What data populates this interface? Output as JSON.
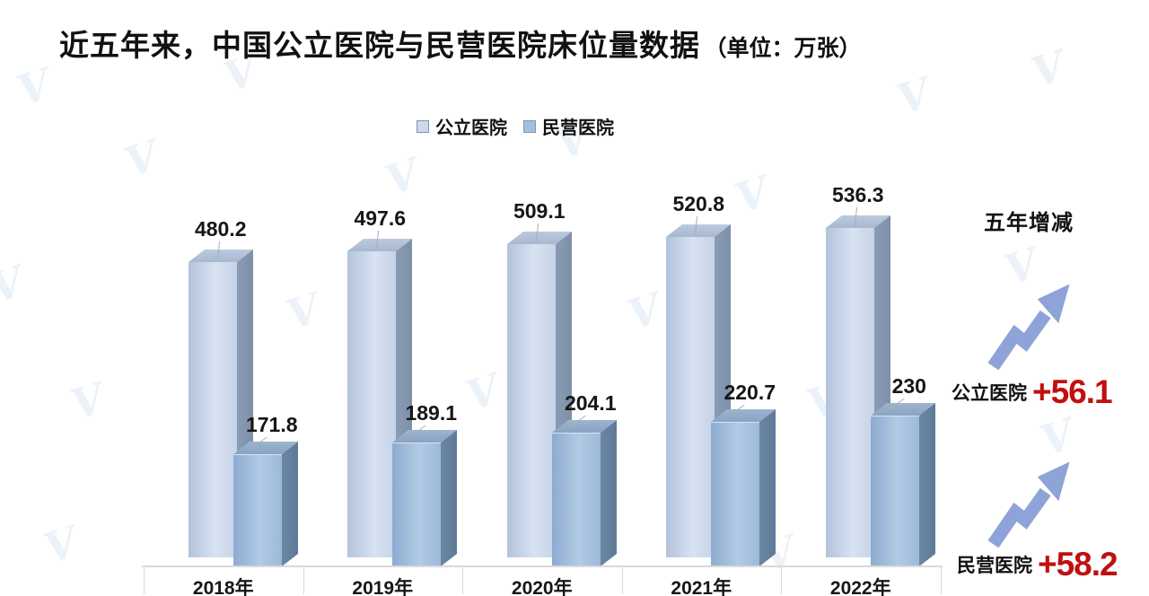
{
  "title": {
    "main": "近五年来，中国公立医院与民营医院床位量数据",
    "unit": "（单位：万张）"
  },
  "watermark": {
    "letter": "V"
  },
  "chart_data": {
    "type": "bar",
    "style": "3d-column",
    "title": "近五年来，中国公立医院与民营医院床位量数据",
    "unit": "万张",
    "categories": [
      "2018年",
      "2019年",
      "2020年",
      "2021年",
      "2022年"
    ],
    "series": [
      {
        "name": "公立医院",
        "values": [
          480.2,
          497.6,
          509.1,
          520.8,
          536.3
        ],
        "face_color": "#ccdaec",
        "side_color": "#8093ab",
        "top_color": "#aebfd5"
      },
      {
        "name": "民营医院",
        "values": [
          171.8,
          189.1,
          204.1,
          220.7,
          230
        ],
        "face_color": "#a3c0de",
        "side_color": "#5f7d9c",
        "top_color": "#93abc9"
      }
    ],
    "xlabel": "",
    "ylabel": "",
    "ylim": [
      0,
      560
    ],
    "grid": false,
    "legend_position": "top-center",
    "value_labels_shown": true
  },
  "summary": {
    "heading": "五年增减",
    "rows": [
      {
        "label": "公立医院",
        "value": "+56.1"
      },
      {
        "label": "民营医院",
        "value": "+58.2"
      }
    ],
    "value_color": "#c01010",
    "arrow_color": "#8ea3d8"
  },
  "axis": {
    "line_color": "#d9d9d9"
  }
}
